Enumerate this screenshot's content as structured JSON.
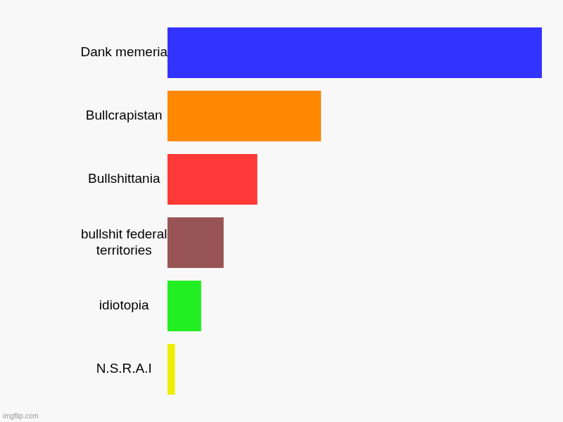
{
  "chart_data": {
    "type": "bar",
    "orientation": "horizontal",
    "categories": [
      "Dank memeria",
      "Bullcrapistan",
      "Bullshittania",
      "bullshit federal territories",
      "idiotopia",
      "N.S.R.A.I"
    ],
    "values": [
      100,
      41,
      24,
      15,
      9,
      2
    ],
    "colors": [
      "#3333ff",
      "#ff8800",
      "#ff3838",
      "#995555",
      "#22ee22",
      "#eeee00"
    ],
    "xlim": [
      0,
      100
    ],
    "grid": false,
    "tick_labels": false,
    "annotation": "imgflip.com"
  }
}
